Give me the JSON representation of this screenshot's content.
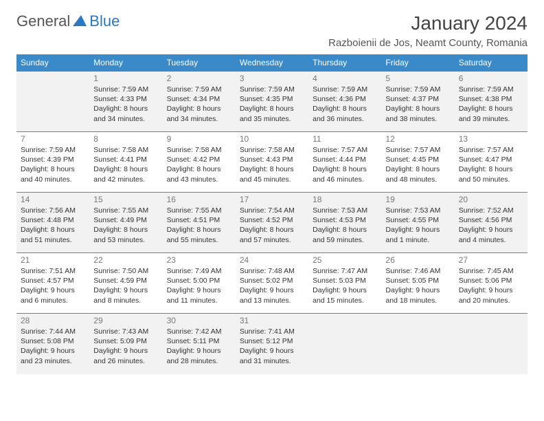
{
  "brand": {
    "part1": "General",
    "part2": "Blue"
  },
  "title": {
    "month": "January 2024",
    "location": "Razboienii de Jos, Neamt County, Romania"
  },
  "colors": {
    "header_bg": "#3a8ac9",
    "header_text": "#ffffff",
    "border": "#3a8ac9",
    "shade_bg": "#f2f2f2",
    "daynum_color": "#777777",
    "text_color": "#333333",
    "brand_blue": "#2b78c2",
    "brand_gray": "#555555"
  },
  "day_headers": [
    "Sunday",
    "Monday",
    "Tuesday",
    "Wednesday",
    "Thursday",
    "Friday",
    "Saturday"
  ],
  "weeks": [
    [
      {
        "n": "",
        "sr": "",
        "ss": "",
        "dl": ""
      },
      {
        "n": "1",
        "sr": "7:59 AM",
        "ss": "4:33 PM",
        "dl": "8 hours and 34 minutes."
      },
      {
        "n": "2",
        "sr": "7:59 AM",
        "ss": "4:34 PM",
        "dl": "8 hours and 34 minutes."
      },
      {
        "n": "3",
        "sr": "7:59 AM",
        "ss": "4:35 PM",
        "dl": "8 hours and 35 minutes."
      },
      {
        "n": "4",
        "sr": "7:59 AM",
        "ss": "4:36 PM",
        "dl": "8 hours and 36 minutes."
      },
      {
        "n": "5",
        "sr": "7:59 AM",
        "ss": "4:37 PM",
        "dl": "8 hours and 38 minutes."
      },
      {
        "n": "6",
        "sr": "7:59 AM",
        "ss": "4:38 PM",
        "dl": "8 hours and 39 minutes."
      }
    ],
    [
      {
        "n": "7",
        "sr": "7:59 AM",
        "ss": "4:39 PM",
        "dl": "8 hours and 40 minutes."
      },
      {
        "n": "8",
        "sr": "7:58 AM",
        "ss": "4:41 PM",
        "dl": "8 hours and 42 minutes."
      },
      {
        "n": "9",
        "sr": "7:58 AM",
        "ss": "4:42 PM",
        "dl": "8 hours and 43 minutes."
      },
      {
        "n": "10",
        "sr": "7:58 AM",
        "ss": "4:43 PM",
        "dl": "8 hours and 45 minutes."
      },
      {
        "n": "11",
        "sr": "7:57 AM",
        "ss": "4:44 PM",
        "dl": "8 hours and 46 minutes."
      },
      {
        "n": "12",
        "sr": "7:57 AM",
        "ss": "4:45 PM",
        "dl": "8 hours and 48 minutes."
      },
      {
        "n": "13",
        "sr": "7:57 AM",
        "ss": "4:47 PM",
        "dl": "8 hours and 50 minutes."
      }
    ],
    [
      {
        "n": "14",
        "sr": "7:56 AM",
        "ss": "4:48 PM",
        "dl": "8 hours and 51 minutes."
      },
      {
        "n": "15",
        "sr": "7:55 AM",
        "ss": "4:49 PM",
        "dl": "8 hours and 53 minutes."
      },
      {
        "n": "16",
        "sr": "7:55 AM",
        "ss": "4:51 PM",
        "dl": "8 hours and 55 minutes."
      },
      {
        "n": "17",
        "sr": "7:54 AM",
        "ss": "4:52 PM",
        "dl": "8 hours and 57 minutes."
      },
      {
        "n": "18",
        "sr": "7:53 AM",
        "ss": "4:53 PM",
        "dl": "8 hours and 59 minutes."
      },
      {
        "n": "19",
        "sr": "7:53 AM",
        "ss": "4:55 PM",
        "dl": "9 hours and 1 minute."
      },
      {
        "n": "20",
        "sr": "7:52 AM",
        "ss": "4:56 PM",
        "dl": "9 hours and 4 minutes."
      }
    ],
    [
      {
        "n": "21",
        "sr": "7:51 AM",
        "ss": "4:57 PM",
        "dl": "9 hours and 6 minutes."
      },
      {
        "n": "22",
        "sr": "7:50 AM",
        "ss": "4:59 PM",
        "dl": "9 hours and 8 minutes."
      },
      {
        "n": "23",
        "sr": "7:49 AM",
        "ss": "5:00 PM",
        "dl": "9 hours and 11 minutes."
      },
      {
        "n": "24",
        "sr": "7:48 AM",
        "ss": "5:02 PM",
        "dl": "9 hours and 13 minutes."
      },
      {
        "n": "25",
        "sr": "7:47 AM",
        "ss": "5:03 PM",
        "dl": "9 hours and 15 minutes."
      },
      {
        "n": "26",
        "sr": "7:46 AM",
        "ss": "5:05 PM",
        "dl": "9 hours and 18 minutes."
      },
      {
        "n": "27",
        "sr": "7:45 AM",
        "ss": "5:06 PM",
        "dl": "9 hours and 20 minutes."
      }
    ],
    [
      {
        "n": "28",
        "sr": "7:44 AM",
        "ss": "5:08 PM",
        "dl": "9 hours and 23 minutes."
      },
      {
        "n": "29",
        "sr": "7:43 AM",
        "ss": "5:09 PM",
        "dl": "9 hours and 26 minutes."
      },
      {
        "n": "30",
        "sr": "7:42 AM",
        "ss": "5:11 PM",
        "dl": "9 hours and 28 minutes."
      },
      {
        "n": "31",
        "sr": "7:41 AM",
        "ss": "5:12 PM",
        "dl": "9 hours and 31 minutes."
      },
      {
        "n": "",
        "sr": "",
        "ss": "",
        "dl": ""
      },
      {
        "n": "",
        "sr": "",
        "ss": "",
        "dl": ""
      },
      {
        "n": "",
        "sr": "",
        "ss": "",
        "dl": ""
      }
    ]
  ],
  "labels": {
    "sunrise": "Sunrise:",
    "sunset": "Sunset:",
    "daylight": "Daylight:"
  }
}
